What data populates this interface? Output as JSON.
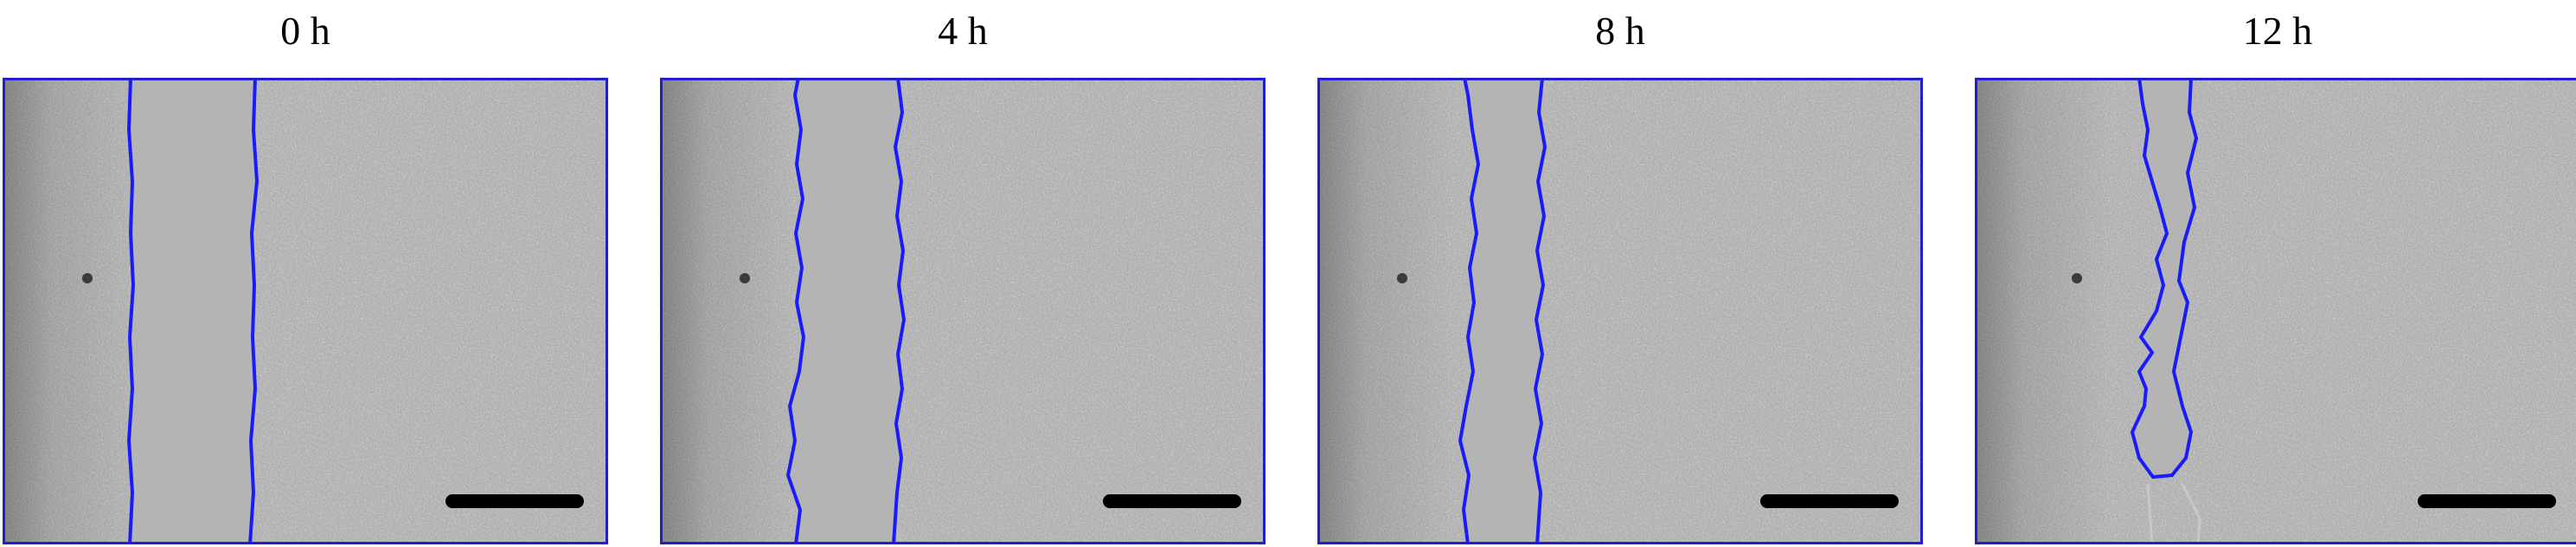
{
  "figure": {
    "panels": [
      {
        "label": "0 h"
      },
      {
        "label": "4 h"
      },
      {
        "label": "8 h"
      },
      {
        "label": "12 h"
      }
    ],
    "colors": {
      "border": "#2020c8",
      "wound_edge": "#1a1aff",
      "cell_field": "#a7a7a7",
      "cell_field_dark": "#7d7d7d",
      "gap": "#b3b3b3",
      "scale_bar": "#000000",
      "title_text": "#000000"
    }
  }
}
